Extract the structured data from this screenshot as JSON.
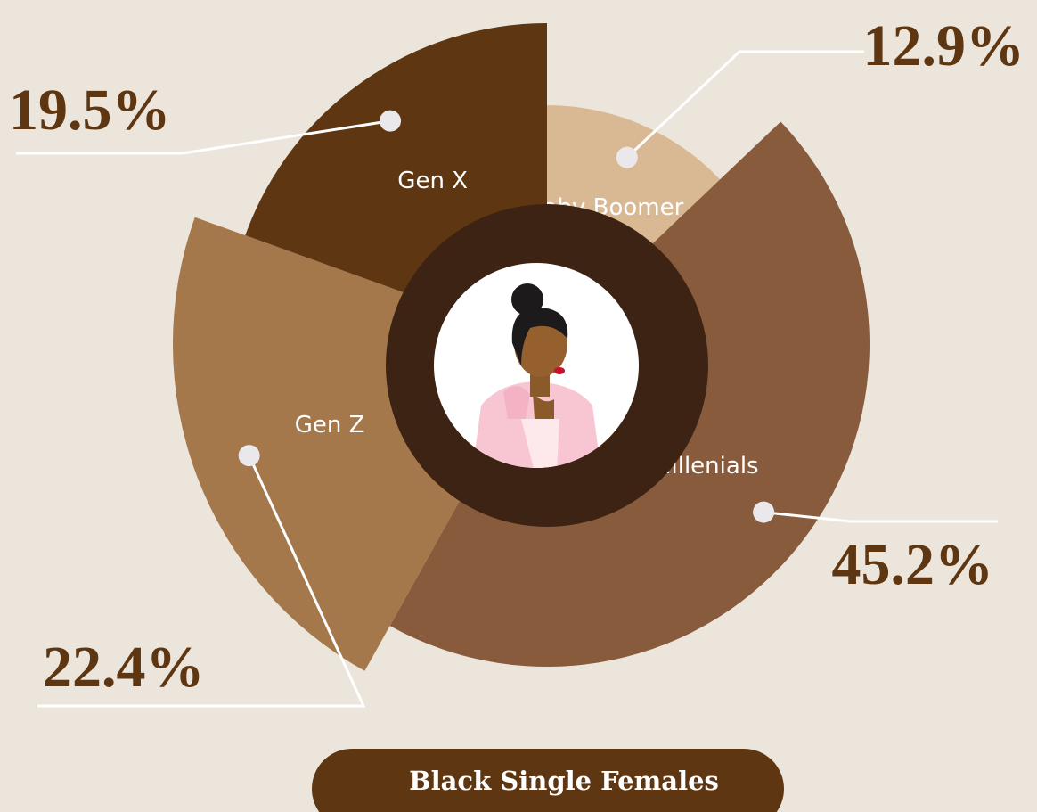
{
  "chart_data": {
    "type": "pie",
    "title": "Black Single Females",
    "categories": [
      "Baby Boomer",
      "Millenials",
      "Gen Z",
      "Gen X"
    ],
    "values": [
      12.9,
      45.2,
      22.4,
      19.5
    ],
    "value_labels": [
      "12.9%",
      "45.2%",
      "22.4%",
      "19.5%"
    ],
    "colors": [
      "#d9b994",
      "#875b3b",
      "#a5784c",
      "#5e3712"
    ]
  }
}
